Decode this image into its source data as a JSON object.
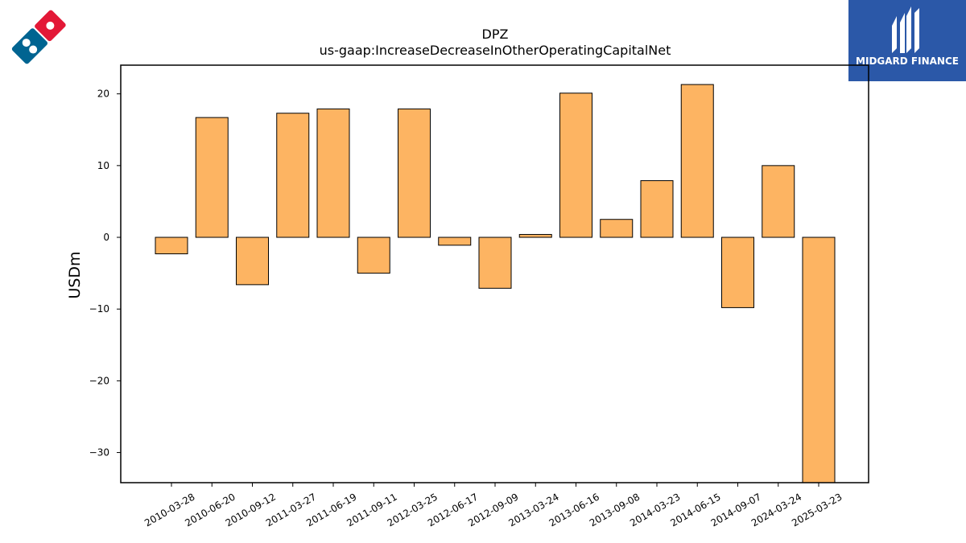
{
  "brand": {
    "left_logo_icon": "dominos-logo-icon",
    "right_logo_icon": "midgard-finance-logo-icon",
    "right_logo_text": "MIDGARD FINANCE",
    "right_logo_bg": "#2b58a8"
  },
  "chart_data": {
    "type": "bar",
    "title": "DPZ",
    "subtitle": "us-gaap:IncreaseDecreaseInOtherOperatingCapitalNet",
    "xlabel": "",
    "ylabel": "USDm",
    "ylim": [
      -34.2,
      24
    ],
    "yticks": [
      20,
      10,
      0,
      -10,
      -20,
      -30
    ],
    "bar_color": "#fdb462",
    "edge_color": "#000000",
    "categories": [
      "2010-03-28",
      "2010-06-20",
      "2010-09-12",
      "2011-03-27",
      "2011-06-19",
      "2011-09-11",
      "2012-03-25",
      "2012-06-17",
      "2012-09-09",
      "2013-03-24",
      "2013-06-16",
      "2013-09-08",
      "2014-03-23",
      "2014-06-15",
      "2014-09-07",
      "2024-03-24",
      "2025-03-23"
    ],
    "values": [
      -2.3,
      16.7,
      -6.6,
      17.3,
      17.9,
      -5.0,
      17.9,
      -1.1,
      -7.1,
      0.4,
      20.1,
      2.5,
      7.9,
      21.3,
      -9.8,
      10.0,
      -34.2
    ]
  }
}
